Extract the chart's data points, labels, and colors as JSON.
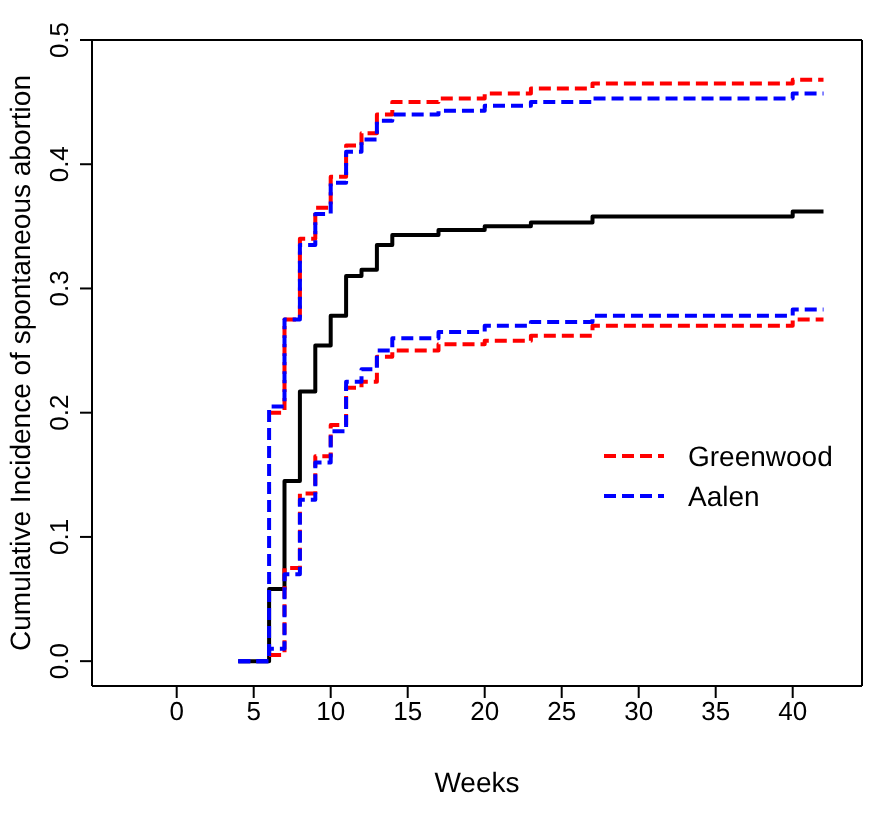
{
  "chart_data": {
    "type": "step",
    "xlabel": "Weeks",
    "ylabel": "Cumulative Incidence of spontaneous abortion",
    "x": [
      4,
      6,
      7,
      8,
      9,
      10,
      11,
      12,
      13,
      14,
      17,
      20,
      23,
      27,
      40,
      42
    ],
    "xlim": [
      -5.5,
      44.5
    ],
    "xticks": [
      0,
      5,
      10,
      15,
      20,
      25,
      30,
      35,
      40
    ],
    "ylim": [
      -0.02,
      0.5
    ],
    "yticks": [
      {
        "value": 0,
        "label": "0.0"
      },
      {
        "value": 0.1,
        "label": "0.1"
      },
      {
        "value": 0.2,
        "label": "0.2"
      },
      {
        "value": 0.3,
        "label": "0.3"
      },
      {
        "value": 0.4,
        "label": "0.4"
      },
      {
        "value": 0.5,
        "label": "0.5"
      }
    ],
    "grid": false,
    "legend": "right",
    "marker": "none",
    "series": [
      {
        "color": "#000000",
        "line_style": "solid",
        "values": [
          0,
          0.058,
          0.145,
          0.217,
          0.254,
          0.278,
          0.31,
          0.315,
          0.335,
          0.343,
          0.347,
          0.35,
          0.353,
          0.358,
          0.362,
          0.362
        ]
      },
      {
        "name": "Greenwood",
        "color": "#ff0000",
        "line_style": "dashed",
        "values": [
          null,
          0.2,
          0.275,
          0.34,
          0.365,
          0.39,
          0.415,
          0.425,
          0.44,
          0.45,
          0.453,
          0.457,
          0.461,
          0.465,
          0.468,
          0.468
        ]
      },
      {
        "name": "Aalen",
        "color": "#0000ff",
        "line_style": "dashed",
        "values": [
          0,
          0.205,
          0.275,
          0.335,
          0.36,
          0.385,
          0.41,
          0.42,
          0.435,
          0.44,
          0.443,
          0.447,
          0.45,
          0.453,
          0.457,
          0.457
        ]
      },
      {
        "color": "#ff0000",
        "line_style": "dashed",
        "values": [
          null,
          0.005,
          0.075,
          0.135,
          0.165,
          0.19,
          0.22,
          0.225,
          0.245,
          0.25,
          0.255,
          0.258,
          0.262,
          0.27,
          0.275,
          0.275
        ]
      },
      {
        "color": "#0000ff",
        "line_style": "dashed",
        "values": [
          0,
          0.01,
          0.07,
          0.13,
          0.16,
          0.185,
          0.225,
          0.235,
          0.25,
          0.26,
          0.265,
          0.27,
          0.273,
          0.278,
          0.283,
          0.283
        ]
      }
    ]
  }
}
